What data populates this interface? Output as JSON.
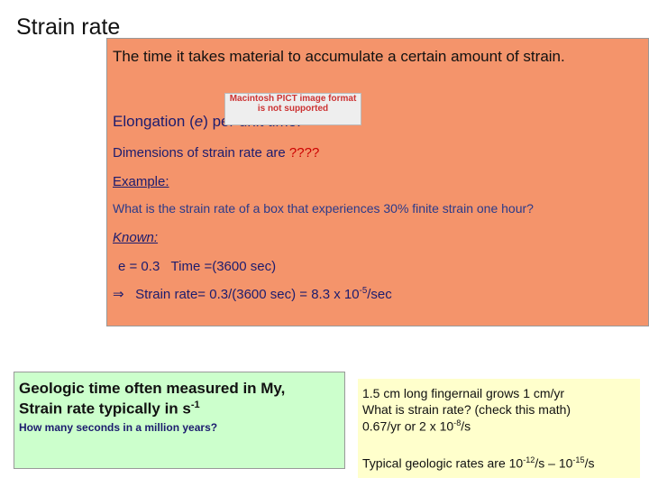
{
  "header": {
    "title": "Strain rate"
  },
  "main_box": {
    "intro": "The time it takes material to accumulate a certain amount of strain.",
    "elongation": [
      "Elongation (",
      "e",
      ") per unit time."
    ],
    "image_placeholder": "Macintosh PICT image format is not supported",
    "dimensions": [
      "Dimensions of strain rate are ",
      "????"
    ],
    "example_heading": "Example:",
    "question": "What is the strain rate of a box that experiences 30% finite strain one hour?",
    "known_heading": "Known:",
    "known_line": "e = 0.3   Time =(3600 sec)",
    "result": {
      "arrow": "⇒",
      "text": "Strain rate= 0.3/(3600 sec) = 8.3 x 10",
      "sup": "-5",
      "tail": "/sec"
    }
  },
  "geologic_box": {
    "line1": "Geologic time often measured in My,",
    "line2": "Strain rate typically in s",
    "line2_sup": "-1",
    "note": "How many seconds in a million years?"
  },
  "fingernail_box": {
    "line1": "1.5 cm long fingernail grows 1 cm/yr",
    "line2": "What is strain rate? (check this math)",
    "line3": [
      "0.67/yr or 2 x 10",
      "-8",
      "/s"
    ],
    "typical": [
      "Typical geologic rates are 10",
      "-12",
      "/s – 10",
      "-15",
      "/s"
    ]
  }
}
